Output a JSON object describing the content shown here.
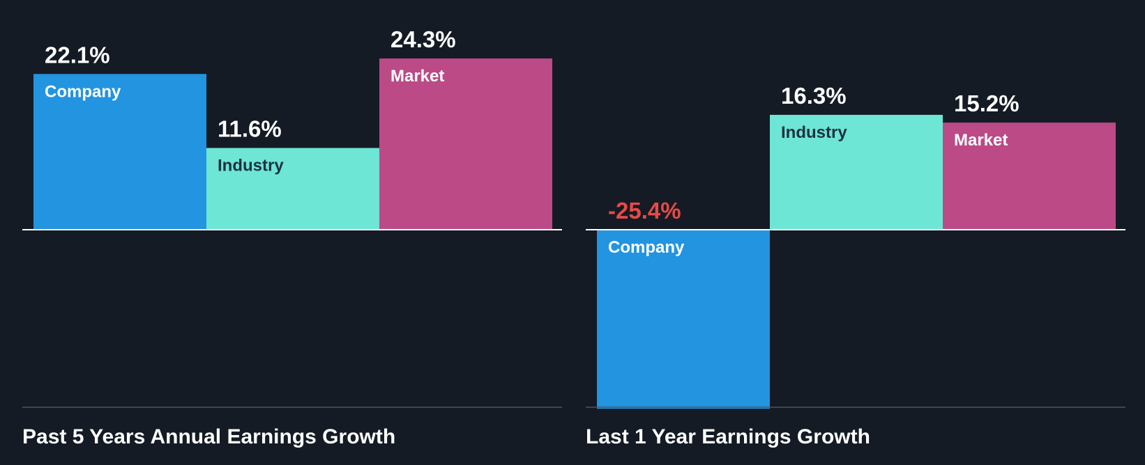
{
  "colors": {
    "background": "#151b24",
    "company": "#2394e0",
    "industry": "#6de6d6",
    "market": "#bb4a87",
    "positive_text": "#ffffff",
    "negative_text": "#e84a46",
    "company_label": "#ffffff",
    "industry_label": "#1e3140",
    "market_label": "#ffffff",
    "zero_line": "#ffffff",
    "base_line": "#4b5563"
  },
  "chart_data": [
    {
      "type": "bar",
      "title": "Past 5 Years Annual Earnings Growth",
      "categories": [
        "Company",
        "Industry",
        "Market"
      ],
      "values": [
        22.1,
        11.6,
        24.3
      ],
      "value_labels": [
        "22.1%",
        "11.6%",
        "24.3%"
      ],
      "unit": "%",
      "ylim": [
        -25.4,
        24.3
      ],
      "grid": false,
      "legend": "none"
    },
    {
      "type": "bar",
      "title": "Last 1 Year Earnings Growth",
      "categories": [
        "Company",
        "Industry",
        "Market"
      ],
      "values": [
        -25.4,
        16.3,
        15.2
      ],
      "value_labels": [
        "-25.4%",
        "16.3%",
        "15.2%"
      ],
      "unit": "%",
      "ylim": [
        -25.4,
        24.3
      ],
      "grid": false,
      "legend": "none"
    }
  ]
}
